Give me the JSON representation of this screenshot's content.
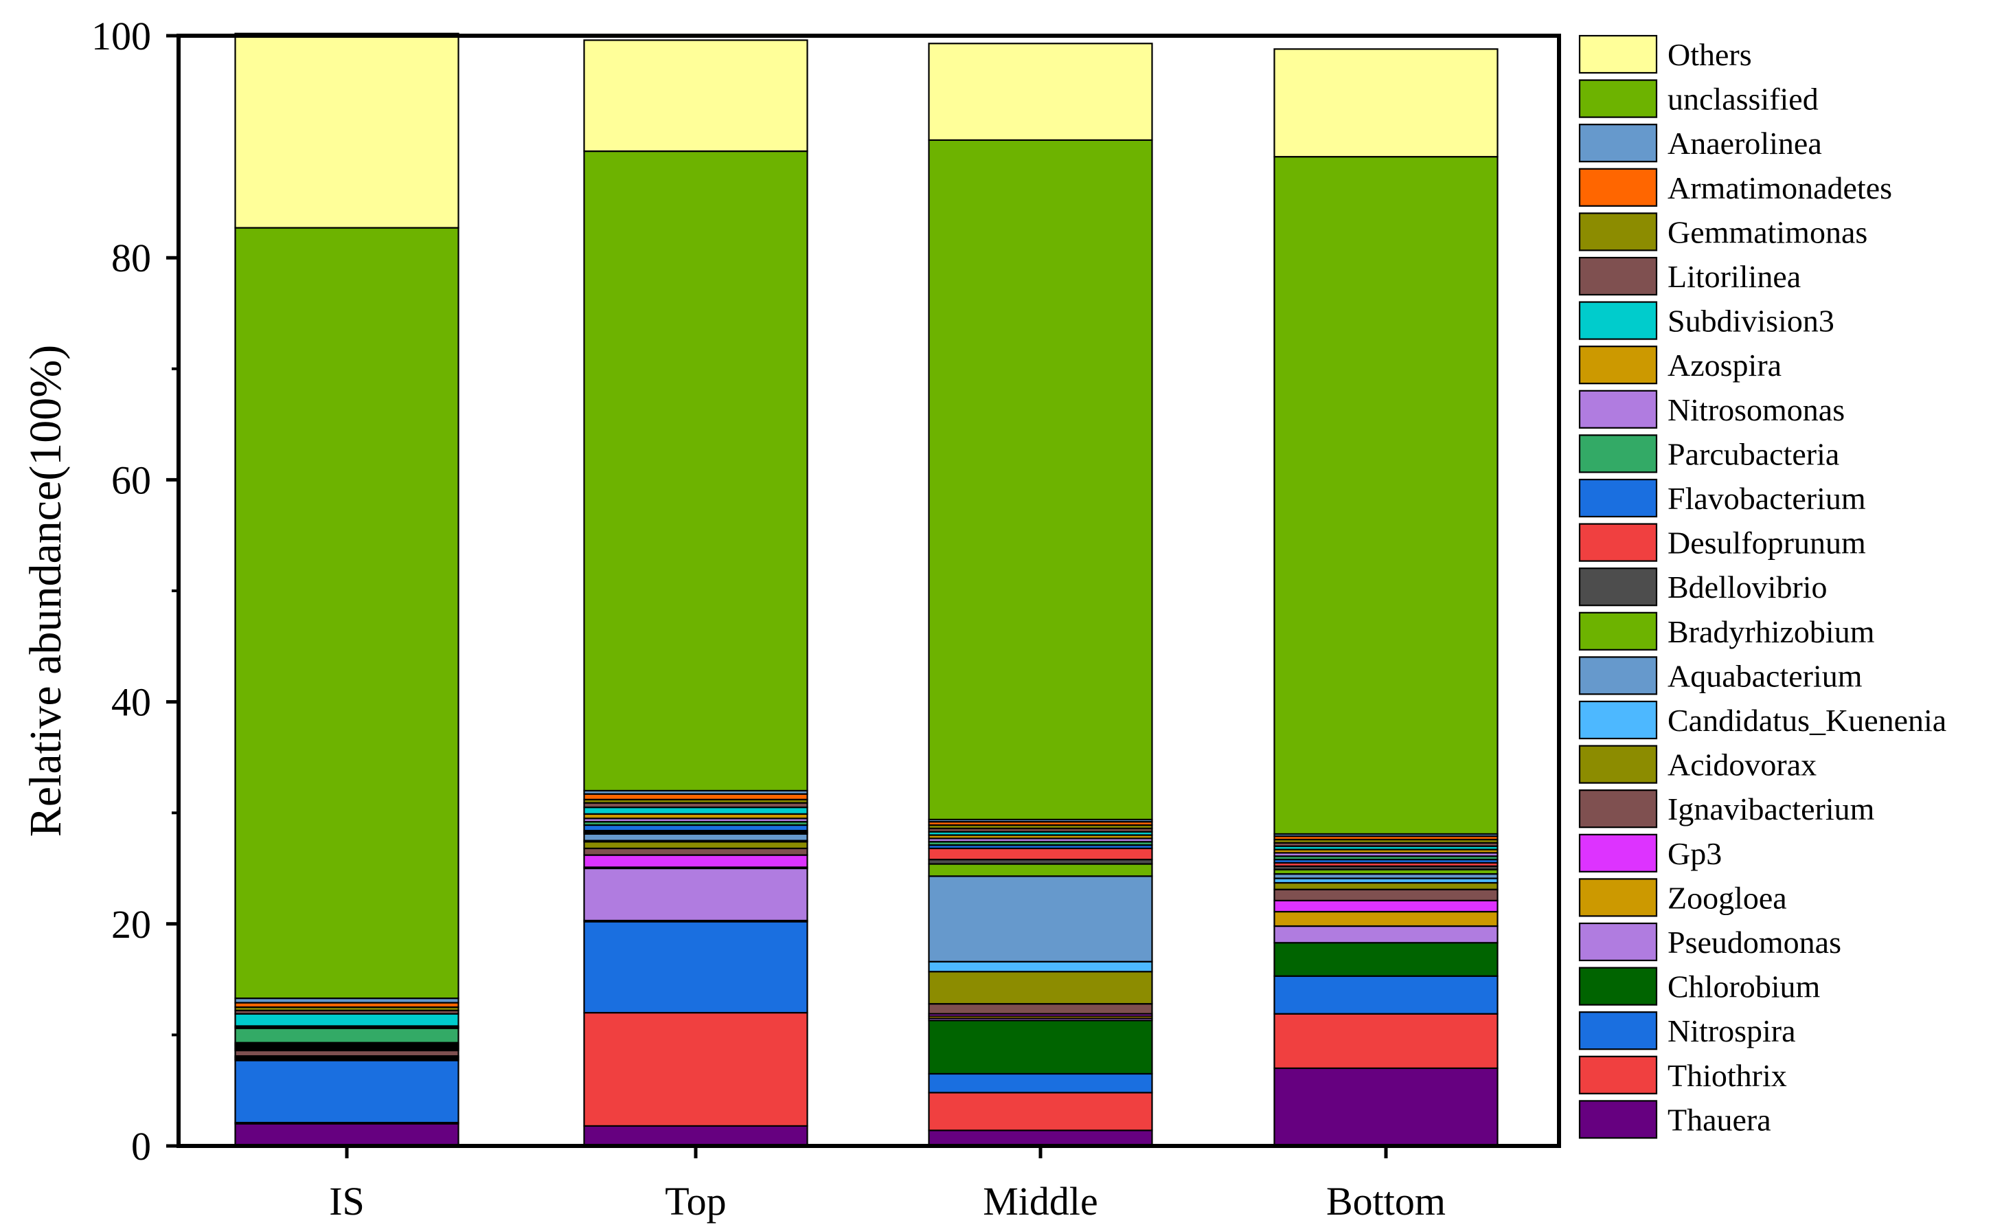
{
  "chart_data": {
    "type": "stacked-bar",
    "title": "",
    "xlabel": "",
    "ylabel": "Relative abundance(100%)",
    "ylim": [
      0,
      100
    ],
    "yticks": [
      "0",
      "20",
      "40",
      "60",
      "80",
      "100"
    ],
    "categories": [
      "IS",
      "Top",
      "Middle",
      "Bottom"
    ],
    "series": [
      {
        "name": "Thauera",
        "color": "#660080",
        "values": [
          2.0,
          1.8,
          1.4,
          7.0
        ]
      },
      {
        "name": "Thiothrix",
        "color": "#F04040",
        "values": [
          0.1,
          10.2,
          3.4,
          4.9
        ]
      },
      {
        "name": "Nitrospira",
        "color": "#1A6FE0",
        "values": [
          5.6,
          8.2,
          1.7,
          3.4
        ]
      },
      {
        "name": "Chlorobium",
        "color": "#006400",
        "values": [
          0.1,
          0.1,
          4.8,
          3.0
        ]
      },
      {
        "name": "Pseudomonas",
        "color": "#B07CE0",
        "values": [
          0.1,
          4.7,
          0.2,
          1.5
        ]
      },
      {
        "name": "Zoogloea",
        "color": "#CC9900",
        "values": [
          0.1,
          0.1,
          0.2,
          1.3
        ]
      },
      {
        "name": "Gp3",
        "color": "#DD33FF",
        "values": [
          0.1,
          1.1,
          0.2,
          1.0
        ]
      },
      {
        "name": "Ignavibacterium",
        "color": "#7F5050",
        "values": [
          0.5,
          0.6,
          0.9,
          1.0
        ]
      },
      {
        "name": "Acidovorax",
        "color": "#8C8C00",
        "values": [
          0.1,
          0.6,
          2.9,
          0.6
        ]
      },
      {
        "name": "Candidatus_Kuenenia",
        "color": "#4DB8FF",
        "values": [
          0.1,
          0.1,
          0.9,
          0.4
        ]
      },
      {
        "name": "Aquabacterium",
        "color": "#6699CC",
        "values": [
          0.1,
          0.6,
          7.7,
          0.4
        ]
      },
      {
        "name": "Bradyrhizobium",
        "color": "#6DB300",
        "values": [
          0.1,
          0.1,
          1.1,
          0.4
        ]
      },
      {
        "name": "Bdellovibrio",
        "color": "#4D4D4D",
        "values": [
          0.1,
          0.1,
          0.4,
          0.3
        ]
      },
      {
        "name": "Desulfoprunum",
        "color": "#F04040",
        "values": [
          0.1,
          0.1,
          1.0,
          0.3
        ]
      },
      {
        "name": "Flavobacterium",
        "color": "#1A6FE0",
        "values": [
          0.1,
          0.5,
          0.3,
          0.3
        ]
      },
      {
        "name": "Parcubacteria",
        "color": "#33AA66",
        "values": [
          1.3,
          0.3,
          0.3,
          0.3
        ]
      },
      {
        "name": "Nitrosomonas",
        "color": "#B07CE0",
        "values": [
          0.1,
          0.3,
          0.3,
          0.3
        ]
      },
      {
        "name": "Azospira",
        "color": "#CC9900",
        "values": [
          0.1,
          0.4,
          0.3,
          0.3
        ]
      },
      {
        "name": "Subdivision3",
        "color": "#00CCCC",
        "values": [
          1.1,
          0.6,
          0.3,
          0.3
        ]
      },
      {
        "name": "Litorilinea",
        "color": "#7F5050",
        "values": [
          0.3,
          0.4,
          0.3,
          0.3
        ]
      },
      {
        "name": "Gemmatimonas",
        "color": "#8C8C00",
        "values": [
          0.3,
          0.3,
          0.3,
          0.3
        ]
      },
      {
        "name": "Armatimonadetes",
        "color": "#FF6600",
        "values": [
          0.4,
          0.5,
          0.3,
          0.3
        ]
      },
      {
        "name": "Anaerolinea",
        "color": "#6699CC",
        "values": [
          0.4,
          0.3,
          0.2,
          0.2
        ]
      },
      {
        "name": "unclassified",
        "color": "#6DB300",
        "values": [
          69.4,
          57.6,
          61.2,
          61.0
        ]
      },
      {
        "name": "Others",
        "color": "#FFFF99",
        "values": [
          17.5,
          10.0,
          8.7,
          9.7
        ]
      }
    ]
  }
}
